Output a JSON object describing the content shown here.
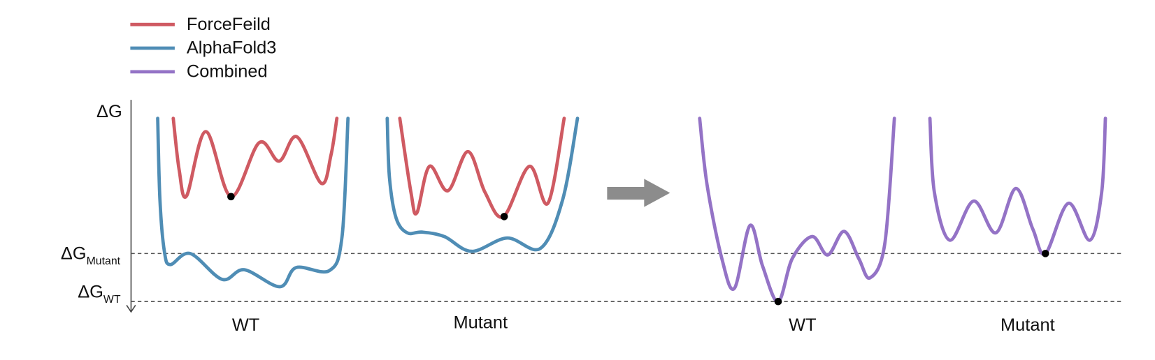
{
  "legend": {
    "items": [
      "ForceFeild",
      "AlphaFold3",
      "Combined"
    ]
  },
  "axis": {
    "label": "ΔG",
    "levels": [
      {
        "main": "ΔG",
        "sub": "Mutant"
      },
      {
        "main": "ΔG",
        "sub": "WT"
      }
    ]
  },
  "panels": [
    "WT",
    "Mutant",
    "WT",
    "Mutant"
  ]
}
